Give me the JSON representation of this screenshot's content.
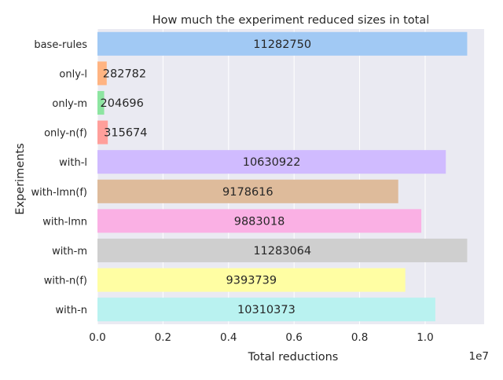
{
  "chart_data": {
    "type": "bar",
    "orientation": "horizontal",
    "title": "How much the experiment reduced sizes in total",
    "xlabel": "Total reductions",
    "ylabel": "Experiments",
    "x_exponent_label": "1e7",
    "xlim": [
      0,
      11800000
    ],
    "xticks": [
      0,
      2000000,
      4000000,
      6000000,
      8000000,
      10000000
    ],
    "xtick_labels": [
      "0.0",
      "0.2",
      "0.4",
      "0.6",
      "0.8",
      "1.0"
    ],
    "grid": true,
    "categories": [
      "base-rules",
      "only-l",
      "only-m",
      "only-n(f)",
      "with-l",
      "with-lmn(f)",
      "with-lmn",
      "with-m",
      "with-n(f)",
      "with-n"
    ],
    "values": [
      11282750,
      282782,
      204696,
      315674,
      10630922,
      9178616,
      9883018,
      11283064,
      9393739,
      10310373
    ],
    "value_labels": [
      "11282750",
      "282782",
      "204696",
      "315674",
      "10630922",
      "9178616",
      "9883018",
      "11283064",
      "9393739",
      "10310373"
    ],
    "colors": [
      "#a1c9f4",
      "#ffb482",
      "#8de5a1",
      "#ff9f9b",
      "#d0bbff",
      "#debb9b",
      "#fab0e4",
      "#cfcfcf",
      "#fffea3",
      "#b9f2f0"
    ]
  }
}
